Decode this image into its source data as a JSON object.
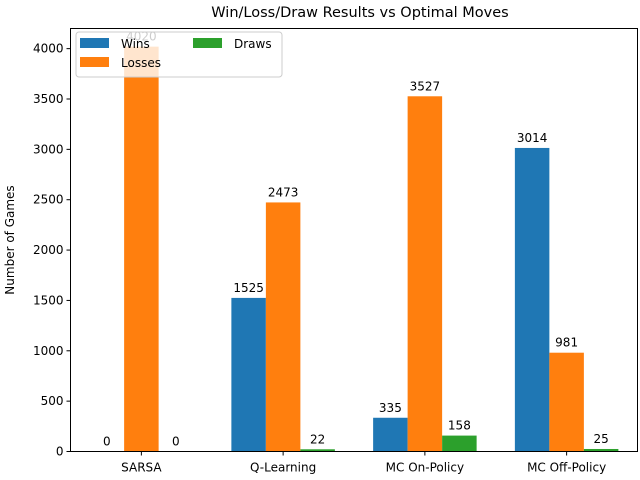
{
  "chart_data": {
    "type": "bar",
    "title": "Win/Loss/Draw Results vs Optimal Moves",
    "xlabel": "",
    "ylabel": "Number of Games",
    "categories": [
      "SARSA",
      "Q-Learning",
      "MC On-Policy",
      "MC Off-Policy"
    ],
    "series": [
      {
        "name": "Wins",
        "color": "#1f77b4",
        "values": [
          0,
          1525,
          335,
          3014
        ]
      },
      {
        "name": "Losses",
        "color": "#ff7f0e",
        "values": [
          4020,
          2473,
          3527,
          981
        ]
      },
      {
        "name": "Draws",
        "color": "#2ca02c",
        "values": [
          0,
          22,
          158,
          25
        ]
      }
    ],
    "ylim": [
      0,
      4200
    ],
    "yticks": [
      0,
      500,
      1000,
      1500,
      2000,
      2500,
      3000,
      3500,
      4000
    ],
    "grid": false,
    "legend": {
      "placement": "upper-left",
      "columns": 2
    }
  }
}
